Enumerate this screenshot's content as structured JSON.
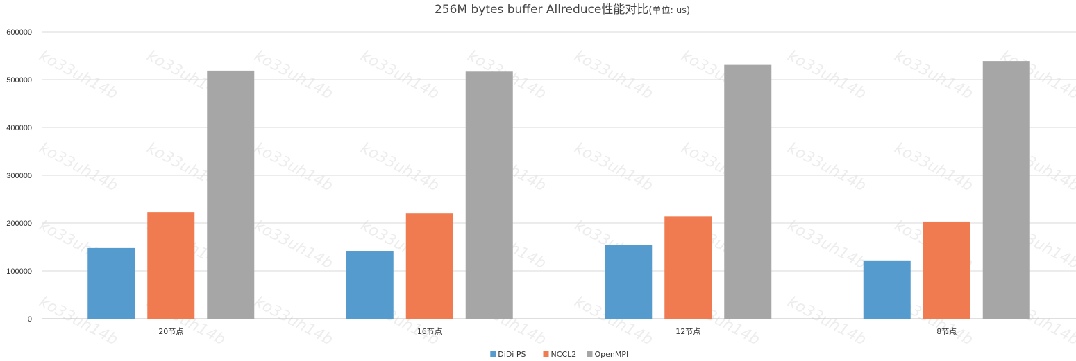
{
  "chart_data": {
    "type": "bar",
    "title": "256M bytes buffer Allreduce性能对比",
    "title_unit": "(单位: us)",
    "xlabel": "",
    "ylabel": "",
    "categories": [
      "20节点",
      "16节点",
      "12节点",
      "8节点"
    ],
    "series": [
      {
        "name": "DiDi PS",
        "color": "#559bcd",
        "values": [
          148000,
          142000,
          155000,
          122000
        ]
      },
      {
        "name": "NCCL2",
        "color": "#f07b51",
        "values": [
          223000,
          220000,
          214000,
          203000
        ]
      },
      {
        "name": "OpenMPI",
        "color": "#a6a6a6",
        "values": [
          519000,
          517000,
          531000,
          539000
        ]
      }
    ],
    "ylim": [
      0,
      600000
    ],
    "yticks": [
      "0",
      "100000",
      "200000",
      "300000",
      "400000",
      "500000",
      "600000"
    ],
    "grid": true,
    "legend_position": "bottom"
  },
  "watermark": "ko33uh14b",
  "colors": {
    "grid": "#d9d9d9",
    "axis": "#bfbfbf",
    "watermark": "#d8d8d8"
  }
}
